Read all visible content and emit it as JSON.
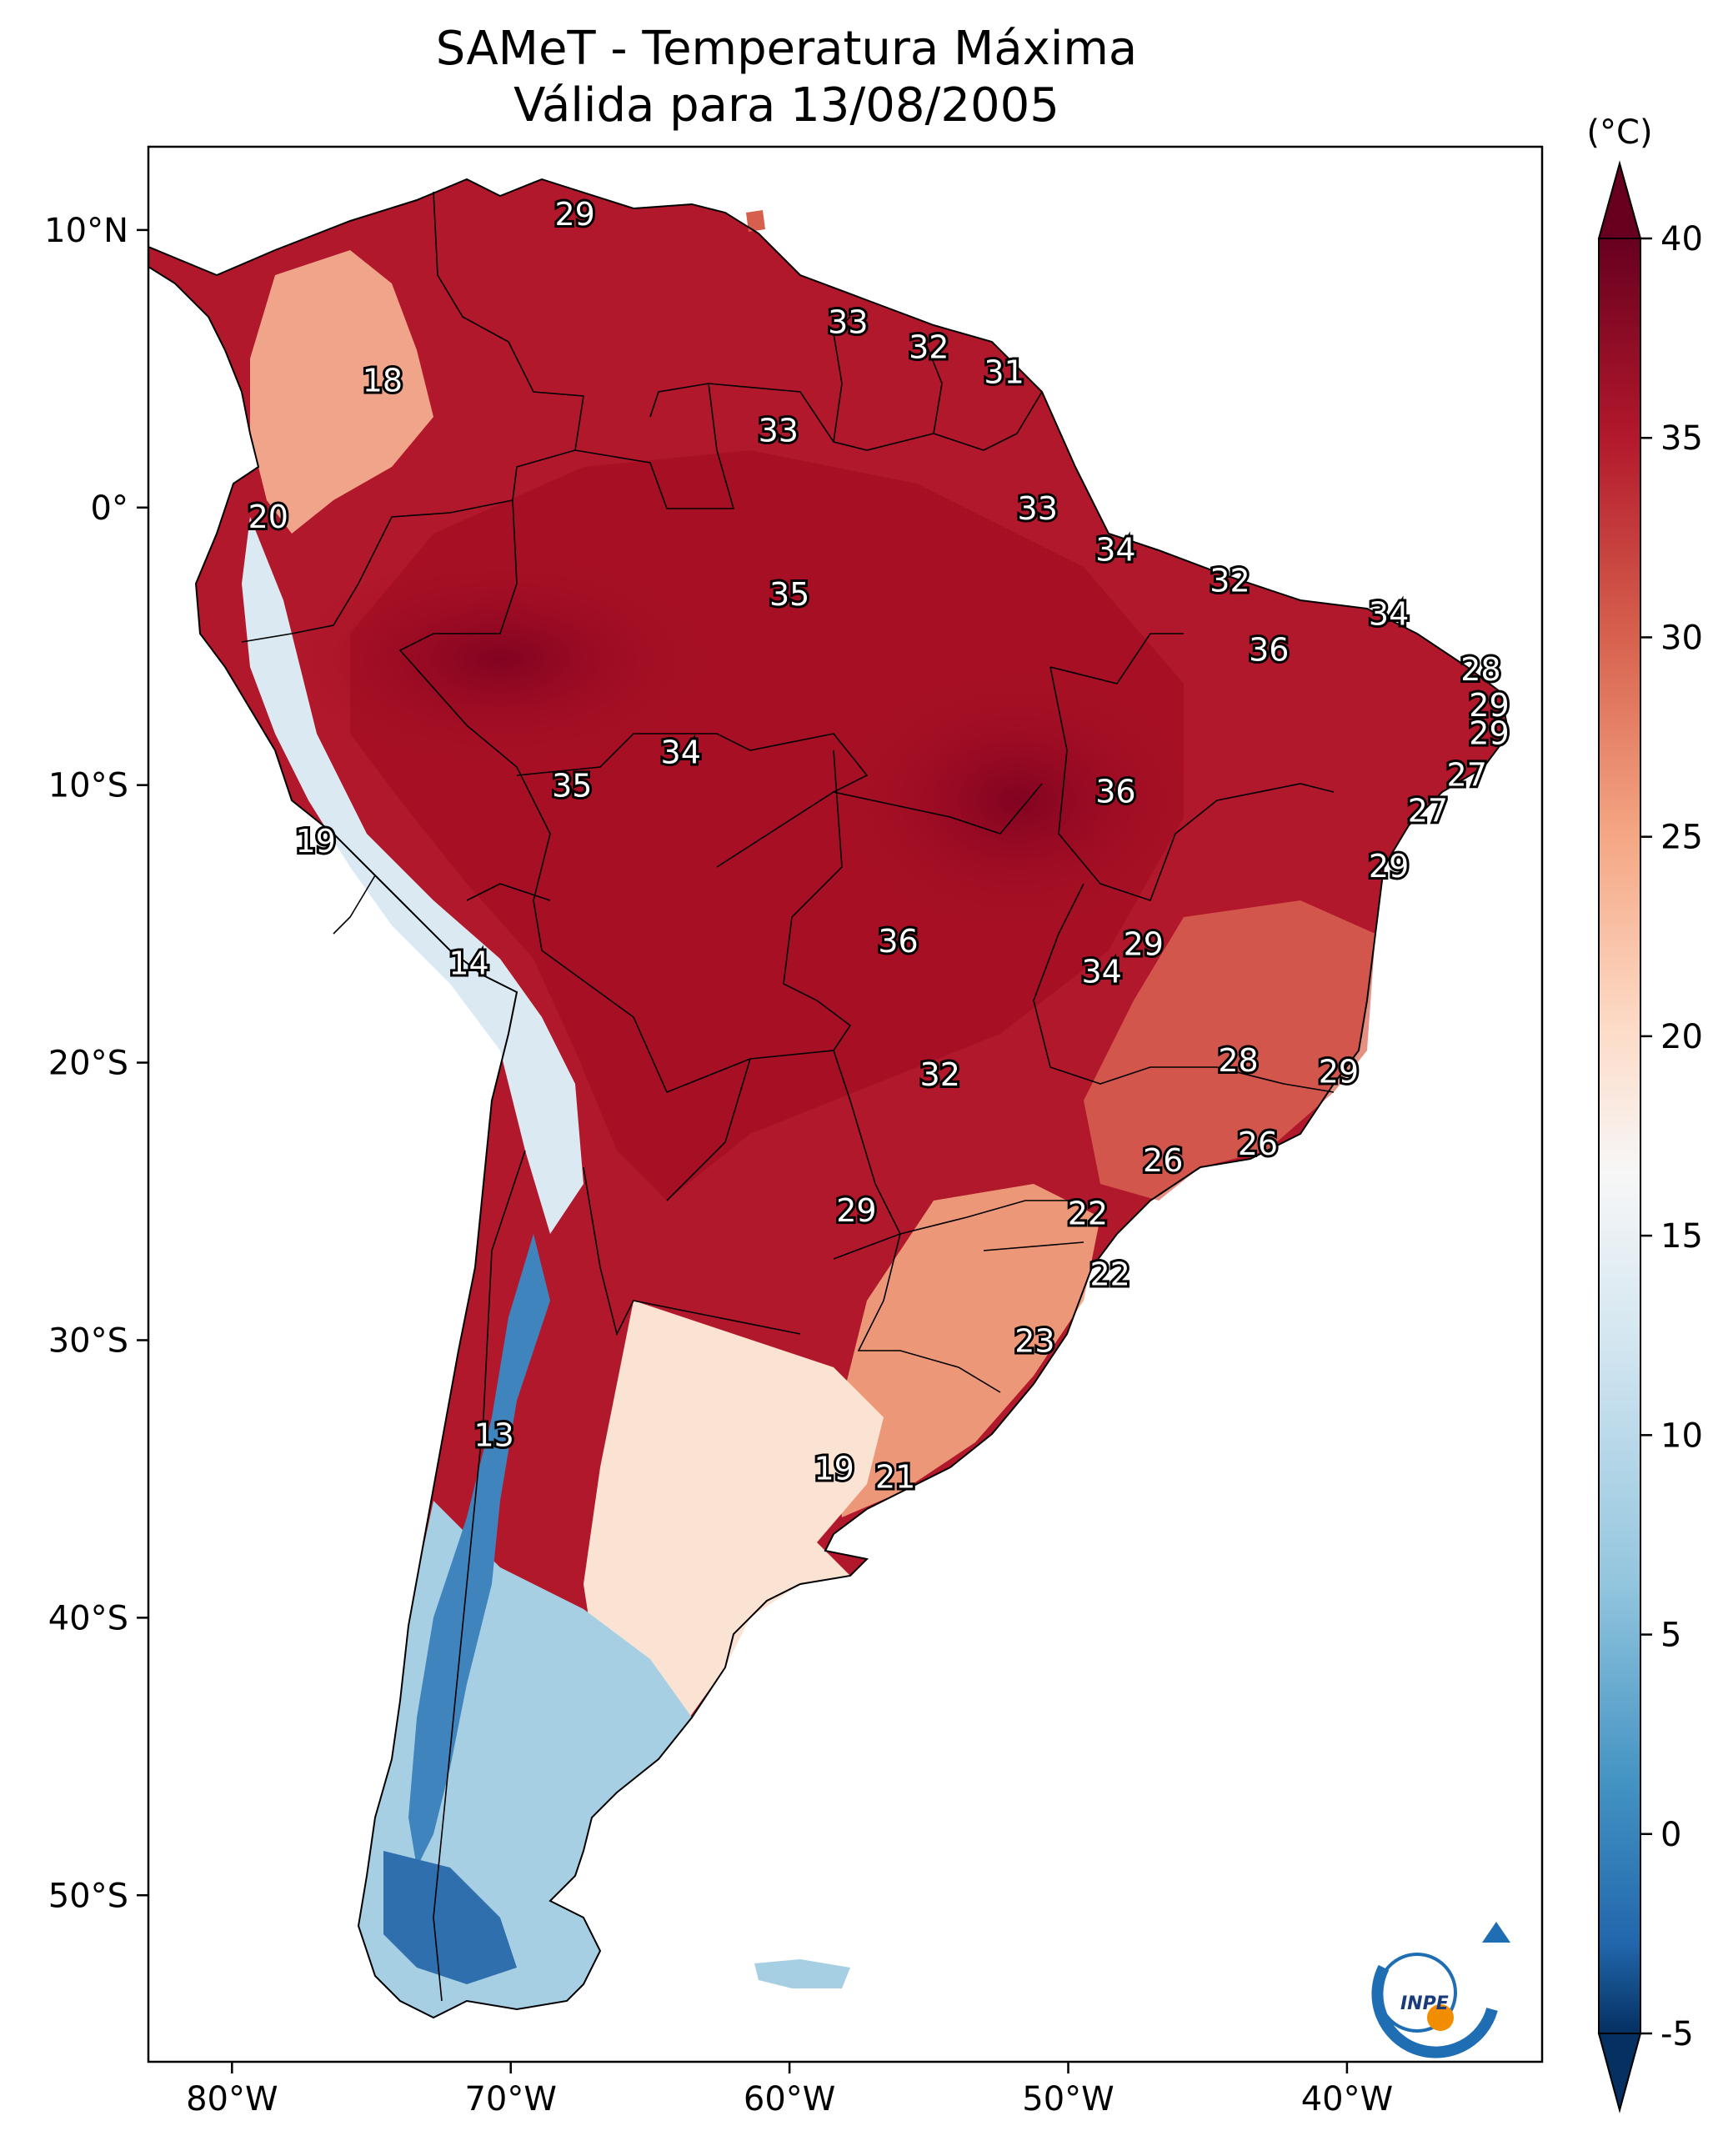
{
  "title": {
    "line1": "SAMeT - Temperatura Máxima",
    "line2": "Válida para 13/08/2005"
  },
  "map": {
    "lon_range": [
      -83,
      -33
    ],
    "lat_range": [
      -56,
      13
    ],
    "x_ticks": [
      {
        "lon": -80,
        "label": "80°W"
      },
      {
        "lon": -70,
        "label": "70°W"
      },
      {
        "lon": -60,
        "label": "60°W"
      },
      {
        "lon": -50,
        "label": "50°W"
      },
      {
        "lon": -40,
        "label": "40°W"
      }
    ],
    "y_ticks": [
      {
        "lat": 10,
        "label": "10°N"
      },
      {
        "lat": 0,
        "label": "0°"
      },
      {
        "lat": -10,
        "label": "10°S"
      },
      {
        "lat": -20,
        "label": "20°S"
      },
      {
        "lat": -30,
        "label": "30°S"
      },
      {
        "lat": -40,
        "label": "40°S"
      },
      {
        "lat": -50,
        "label": "50°S"
      }
    ],
    "city_values": [
      {
        "lon": -67.7,
        "lat": 10.6,
        "value": "29"
      },
      {
        "lon": -57.9,
        "lat": 6.7,
        "value": "33"
      },
      {
        "lon": -55.0,
        "lat": 5.8,
        "value": "32"
      },
      {
        "lon": -52.3,
        "lat": 4.9,
        "value": "31"
      },
      {
        "lon": -60.4,
        "lat": 2.8,
        "value": "33"
      },
      {
        "lon": -74.6,
        "lat": 4.6,
        "value": "18"
      },
      {
        "lon": -78.7,
        "lat": -0.3,
        "value": "20"
      },
      {
        "lon": -51.1,
        "lat": 0.0,
        "value": "33"
      },
      {
        "lon": -48.3,
        "lat": -1.5,
        "value": "34"
      },
      {
        "lon": -60.0,
        "lat": -3.1,
        "value": "35"
      },
      {
        "lon": -44.2,
        "lat": -2.6,
        "value": "32"
      },
      {
        "lon": -38.5,
        "lat": -3.8,
        "value": "34"
      },
      {
        "lon": -42.8,
        "lat": -5.1,
        "value": "36"
      },
      {
        "lon": -35.2,
        "lat": -5.8,
        "value": "28"
      },
      {
        "lon": -34.9,
        "lat": -7.1,
        "value": "29"
      },
      {
        "lon": -34.9,
        "lat": -8.1,
        "value": "29"
      },
      {
        "lon": -35.7,
        "lat": -9.6,
        "value": "27"
      },
      {
        "lon": -37.1,
        "lat": -10.9,
        "value": "27"
      },
      {
        "lon": -63.9,
        "lat": -8.8,
        "value": "34"
      },
      {
        "lon": -67.8,
        "lat": -10.0,
        "value": "35"
      },
      {
        "lon": -48.3,
        "lat": -10.2,
        "value": "36"
      },
      {
        "lon": -38.5,
        "lat": -12.9,
        "value": "29"
      },
      {
        "lon": -77.0,
        "lat": -12.0,
        "value": "19"
      },
      {
        "lon": -56.1,
        "lat": -15.6,
        "value": "36"
      },
      {
        "lon": -47.3,
        "lat": -15.7,
        "value": "29"
      },
      {
        "lon": -48.8,
        "lat": -16.7,
        "value": "34"
      },
      {
        "lon": -71.5,
        "lat": -16.4,
        "value": "14"
      },
      {
        "lon": -54.6,
        "lat": -20.4,
        "value": "32"
      },
      {
        "lon": -43.9,
        "lat": -19.9,
        "value": "28"
      },
      {
        "lon": -40.3,
        "lat": -20.3,
        "value": "29"
      },
      {
        "lon": -43.2,
        "lat": -22.9,
        "value": "26"
      },
      {
        "lon": -46.6,
        "lat": -23.5,
        "value": "26"
      },
      {
        "lon": -57.6,
        "lat": -25.3,
        "value": "29"
      },
      {
        "lon": -49.3,
        "lat": -25.4,
        "value": "22"
      },
      {
        "lon": -48.5,
        "lat": -27.6,
        "value": "22"
      },
      {
        "lon": -51.2,
        "lat": -30.0,
        "value": "23"
      },
      {
        "lon": -70.6,
        "lat": -33.4,
        "value": "13"
      },
      {
        "lon": -58.4,
        "lat": -34.6,
        "value": "19"
      },
      {
        "lon": -56.2,
        "lat": -34.9,
        "value": "21"
      }
    ]
  },
  "colorbar": {
    "unit": "(°C)",
    "min": -5,
    "max": 40,
    "ticks": [
      {
        "value": 40,
        "label": "40"
      },
      {
        "value": 35,
        "label": "35"
      },
      {
        "value": 30,
        "label": "30"
      },
      {
        "value": 25,
        "label": "25"
      },
      {
        "value": 20,
        "label": "20"
      },
      {
        "value": 15,
        "label": "15"
      },
      {
        "value": 10,
        "label": "10"
      },
      {
        "value": 5,
        "label": "5"
      },
      {
        "value": 0,
        "label": "0"
      },
      {
        "value": -5,
        "label": "-5"
      }
    ],
    "colors": {
      "max": "#67001f",
      "high": "#b2182b",
      "warm": "#ef8a62",
      "light": "#fddbc7",
      "neutral": "#f7f7f7",
      "cool": "#92c5de",
      "cold": "#2166ac",
      "min": "#053061"
    }
  },
  "logo": {
    "text": "INPE"
  }
}
